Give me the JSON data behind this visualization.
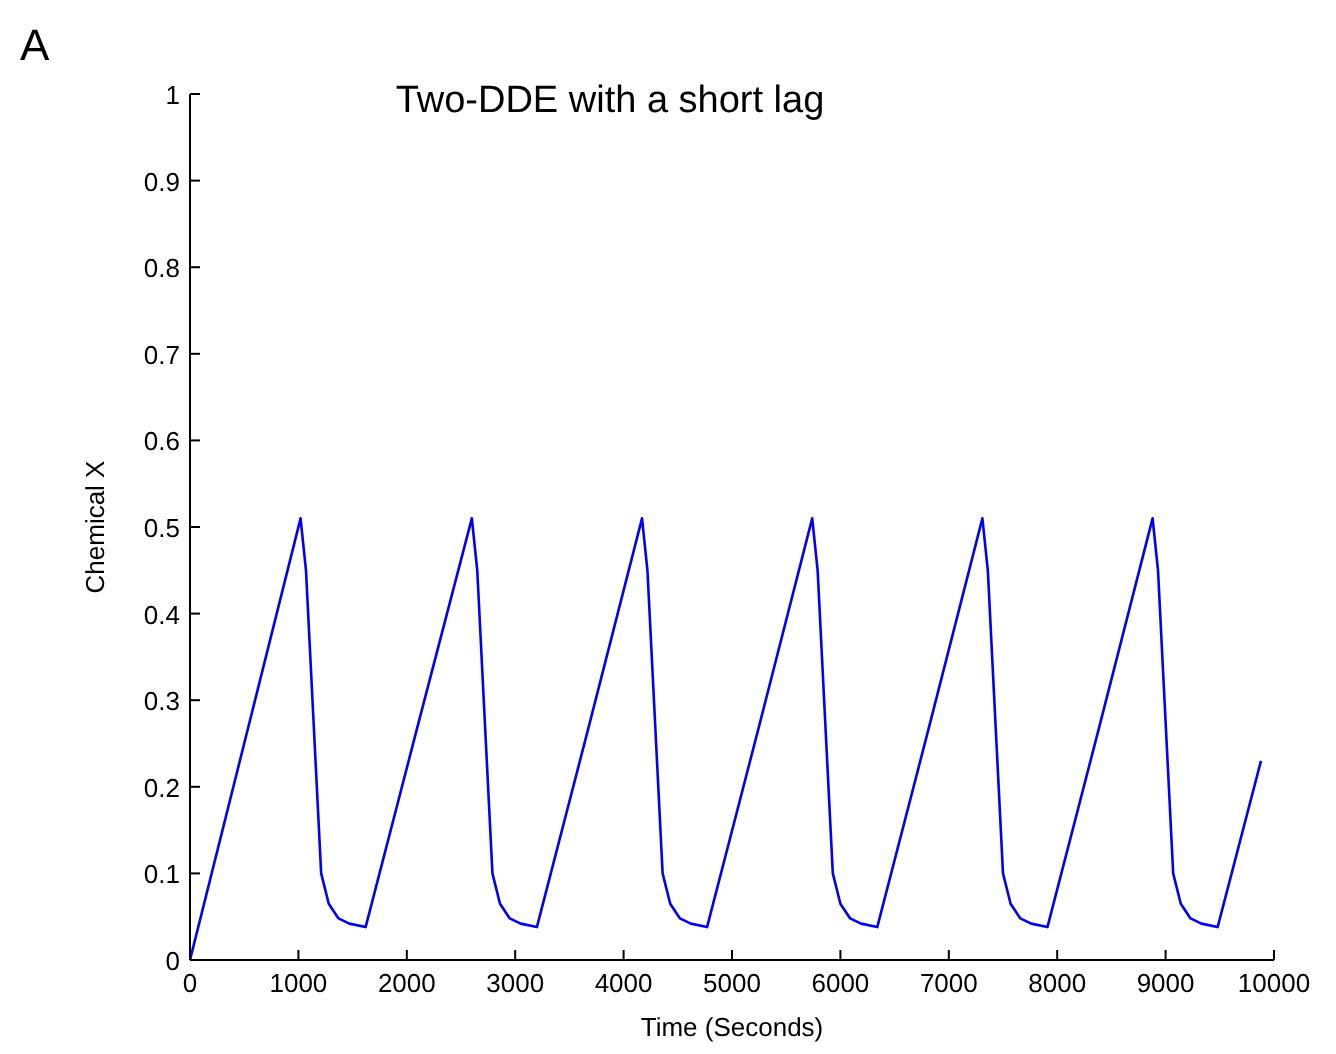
{
  "chart_data": {
    "type": "line",
    "title": "Two-DDE with a short lag",
    "xlabel": "Time (Seconds)",
    "ylabel": "Chemical X",
    "annotations": [
      "A"
    ],
    "x": [
      0,
      500,
      1020,
      1070,
      1130,
      1210,
      1280,
      1370,
      1470,
      1620,
      2100,
      2600,
      2650,
      2710,
      2790,
      2860,
      2950,
      3050,
      3200,
      3680,
      4170,
      4220,
      4280,
      4360,
      4430,
      4520,
      4620,
      4770,
      5250,
      5740,
      5790,
      5850,
      5930,
      6000,
      6090,
      6190,
      6340,
      6820,
      7310,
      7360,
      7420,
      7500,
      7570,
      7660,
      7760,
      7910,
      8390,
      8880,
      8930,
      8990,
      9070,
      9140,
      9230,
      9330,
      9480,
      9880
    ],
    "series": [
      {
        "color": "#0000ff",
        "values": [
          0,
          0.25,
          0.51,
          0.45,
          0.3,
          0.1,
          0.065,
          0.048,
          0.042,
          0.038,
          0.27,
          0.51,
          0.45,
          0.3,
          0.1,
          0.065,
          0.048,
          0.042,
          0.038,
          0.27,
          0.51,
          0.45,
          0.3,
          0.1,
          0.065,
          0.048,
          0.042,
          0.038,
          0.27,
          0.51,
          0.45,
          0.3,
          0.1,
          0.065,
          0.048,
          0.042,
          0.038,
          0.27,
          0.51,
          0.45,
          0.3,
          0.1,
          0.065,
          0.048,
          0.042,
          0.038,
          0.27,
          0.51,
          0.45,
          0.3,
          0.1,
          0.065,
          0.048,
          0.042,
          0.038,
          0.23
        ]
      }
    ],
    "xlim": [
      0,
      10000
    ],
    "xticks": [
      0,
      1000,
      2000,
      3000,
      4000,
      5000,
      6000,
      7000,
      8000,
      9000,
      10000
    ],
    "ylim": [
      0,
      1
    ],
    "yticks": [
      0,
      0.1,
      0.2,
      0.3,
      0.4,
      0.5,
      0.6,
      0.7,
      0.8,
      0.9,
      1
    ],
    "grid": false
  }
}
